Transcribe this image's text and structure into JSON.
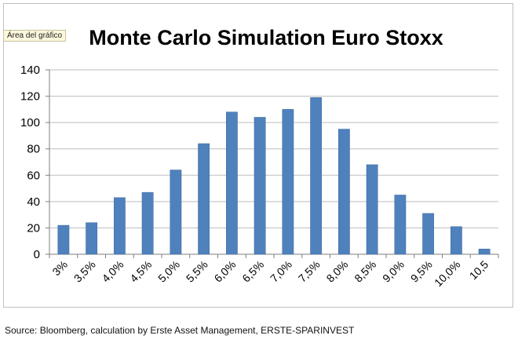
{
  "tooltip": "Área del gráfico",
  "source": "Source: Bloomberg, calculation by Erste Asset Management, ERSTE-SPARINVEST",
  "colors": {
    "bar": "#4f81bd",
    "bar_stroke": "#3f6e9f",
    "grid": "#bdbdbd",
    "axis": "#7f7f7f",
    "text": "#000000"
  },
  "chart_data": {
    "type": "bar",
    "title": "Monte Carlo Simulation Euro Stoxx",
    "xlabel": "",
    "ylabel": "",
    "categories": [
      "3%",
      "3,5%",
      "4,0%",
      "4,5%",
      "5,0%",
      "5,5%",
      "6,0%",
      "6,5%",
      "7,0%",
      "7,5%",
      "8,0%",
      "8,5%",
      "9,0%",
      "9,5%",
      "10,0%",
      "10,5"
    ],
    "values": [
      22,
      24,
      43,
      47,
      64,
      84,
      108,
      104,
      110,
      119,
      95,
      68,
      45,
      31,
      21,
      4
    ],
    "ylim": [
      0,
      140
    ],
    "yticks": [
      0,
      20,
      40,
      60,
      80,
      100,
      120,
      140
    ],
    "grid": true,
    "legend": "none"
  }
}
